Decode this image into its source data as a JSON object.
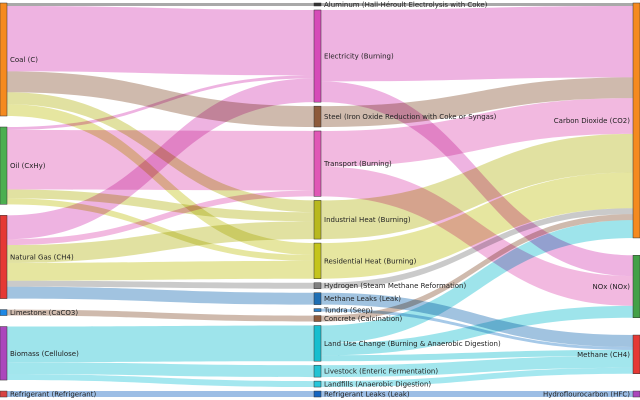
{
  "chart_data": {
    "type": "sankey",
    "title": "",
    "nodes": [
      {
        "id": "coal",
        "label": "Coal (C)",
        "column": 0,
        "color": "#f58a1f"
      },
      {
        "id": "oil",
        "label": "Oil (CxHy)",
        "column": 0,
        "color": "#4caf50"
      },
      {
        "id": "gas",
        "label": "Natural Gas (CH4)",
        "column": 0,
        "color": "#e53935"
      },
      {
        "id": "limestone",
        "label": "Limestone (CaCO3)",
        "column": 0,
        "color": "#1e88e5"
      },
      {
        "id": "biomass",
        "label": "Biomass (Cellulose)",
        "column": 0,
        "color": "#ab47bc"
      },
      {
        "id": "refrigerant",
        "label": "Refrigerant (Refrigerant)",
        "column": 0,
        "color": "#d84343"
      },
      {
        "id": "aluminum",
        "label": "Aluminum (Hall-Héroult Electrolysis with Coke)",
        "column": 1,
        "color": "#333333"
      },
      {
        "id": "electricity",
        "label": "Electricity (Burning)",
        "column": 1,
        "color": "#d64ab8"
      },
      {
        "id": "steel",
        "label": "Steel (Iron Oxide Reduction with Coke or Syngas)",
        "column": 1,
        "color": "#8d5a3b"
      },
      {
        "id": "transport",
        "label": "Transport (Burning)",
        "column": 1,
        "color": "#e057b6"
      },
      {
        "id": "industrial",
        "label": "Industrial Heat (Burning)",
        "column": 1,
        "color": "#b8b81e"
      },
      {
        "id": "residential",
        "label": "Residential Heat (Burning)",
        "column": 1,
        "color": "#c4c41c"
      },
      {
        "id": "hydrogen",
        "label": "Hydrogen (Steam Methane Reformation)",
        "column": 1,
        "color": "#808080"
      },
      {
        "id": "methaneleaks",
        "label": "Methane Leaks (Leak)",
        "column": 1,
        "color": "#1f6fb4"
      },
      {
        "id": "tundra",
        "label": "Tundra (Seep)",
        "column": 1,
        "color": "#2b7fc8"
      },
      {
        "id": "concrete",
        "label": "Concrete (Calcination)",
        "column": 1,
        "color": "#8d5a3b"
      },
      {
        "id": "landuse",
        "label": "Land Use Change (Burning & Anaerobic Digestion)",
        "column": 1,
        "color": "#17becf"
      },
      {
        "id": "livestock",
        "label": "Livestock (Enteric Fermentation)",
        "column": 1,
        "color": "#22c3d3"
      },
      {
        "id": "landfills",
        "label": "Landfills (Anaerobic Digestion)",
        "column": 1,
        "color": "#26c6da"
      },
      {
        "id": "refleaks",
        "label": "Refrigerant Leaks (Leak)",
        "column": 1,
        "color": "#1565c0"
      },
      {
        "id": "co2",
        "label": "Carbon Dioxide (CO2)",
        "column": 2,
        "color": "#f58a1f"
      },
      {
        "id": "nox",
        "label": "NOx (NOx)",
        "column": 2,
        "color": "#43a047"
      },
      {
        "id": "ch4",
        "label": "Methane (CH4)",
        "column": 2,
        "color": "#e53935"
      },
      {
        "id": "hfc",
        "label": "Hydroflourocarbon (HFC)",
        "column": 2,
        "color": "#ab47bc"
      }
    ],
    "links": [
      {
        "source": "coal",
        "target": "electricity",
        "value": 22
      },
      {
        "source": "coal",
        "target": "steel",
        "value": 7
      },
      {
        "source": "coal",
        "target": "industrial",
        "value": 4
      },
      {
        "source": "coal",
        "target": "residential",
        "value": 4
      },
      {
        "source": "coal",
        "target": "aluminum",
        "value": 1
      },
      {
        "source": "oil",
        "target": "transport",
        "value": 20
      },
      {
        "source": "oil",
        "target": "industrial",
        "value": 3
      },
      {
        "source": "oil",
        "target": "residential",
        "value": 2
      },
      {
        "source": "oil",
        "target": "electricity",
        "value": 1
      },
      {
        "source": "gas",
        "target": "electricity",
        "value": 8
      },
      {
        "source": "gas",
        "target": "industrial",
        "value": 6
      },
      {
        "source": "gas",
        "target": "residential",
        "value": 6
      },
      {
        "source": "gas",
        "target": "transport",
        "value": 2
      },
      {
        "source": "gas",
        "target": "hydrogen",
        "value": 2
      },
      {
        "source": "gas",
        "target": "methaneleaks",
        "value": 4
      },
      {
        "source": "limestone",
        "target": "concrete",
        "value": 2
      },
      {
        "source": "biomass",
        "target": "landuse",
        "value": 12
      },
      {
        "source": "biomass",
        "target": "livestock",
        "value": 4
      },
      {
        "source": "biomass",
        "target": "landfills",
        "value": 2
      },
      {
        "source": "refrigerant",
        "target": "refleaks",
        "value": 2
      },
      {
        "source": "aluminum",
        "target": "co2",
        "value": 1
      },
      {
        "source": "electricity",
        "target": "co2",
        "value": 24
      },
      {
        "source": "electricity",
        "target": "nox",
        "value": 7
      },
      {
        "source": "steel",
        "target": "co2",
        "value": 7
      },
      {
        "source": "transport",
        "target": "co2",
        "value": 12
      },
      {
        "source": "transport",
        "target": "nox",
        "value": 10
      },
      {
        "source": "industrial",
        "target": "co2",
        "value": 13
      },
      {
        "source": "residential",
        "target": "co2",
        "value": 12
      },
      {
        "source": "hydrogen",
        "target": "co2",
        "value": 2
      },
      {
        "source": "methaneleaks",
        "target": "ch4",
        "value": 4
      },
      {
        "source": "tundra",
        "target": "ch4",
        "value": 1
      },
      {
        "source": "concrete",
        "target": "co2",
        "value": 2
      },
      {
        "source": "landuse",
        "target": "co2",
        "value": 6
      },
      {
        "source": "landuse",
        "target": "nox",
        "value": 4
      },
      {
        "source": "landuse",
        "target": "ch4",
        "value": 2
      },
      {
        "source": "livestock",
        "target": "ch4",
        "value": 4
      },
      {
        "source": "landfills",
        "target": "ch4",
        "value": 2
      },
      {
        "source": "refleaks",
        "target": "hfc",
        "value": 2
      }
    ]
  }
}
